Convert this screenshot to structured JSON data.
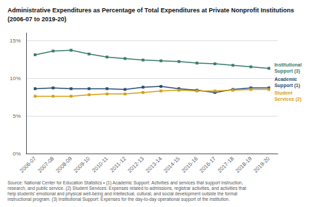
{
  "chart_data": {
    "type": "line",
    "title": "Administrative Expenditures as Percentage of Total Expenditures at Private Nonprofit Institutions",
    "subtitle": "(2006-07 to 2019-20)",
    "categories": [
      "2006-07",
      "2007-08",
      "2008-09",
      "2009-10",
      "2010-11",
      "2011-12",
      "2012-13",
      "2013-14",
      "2014-15",
      "2015-16",
      "2016-17",
      "2017-18",
      "2018-19",
      "2019-20"
    ],
    "series": [
      {
        "name": "Institutional\nSupport (3)",
        "color": "#3a7d6e",
        "values": [
          13.1,
          13.6,
          13.7,
          13.2,
          12.8,
          12.6,
          12.4,
          12.3,
          12.2,
          12.0,
          11.9,
          11.7,
          11.5,
          11.3
        ]
      },
      {
        "name": "Academic\nSupport (1)",
        "color": "#2b4f72",
        "values": [
          8.6,
          8.7,
          8.6,
          8.6,
          8.6,
          8.5,
          8.8,
          8.9,
          8.6,
          8.4,
          8.1,
          8.5,
          8.7,
          8.7
        ]
      },
      {
        "name": "Student\nServices (2)",
        "color": "#d4a017",
        "values": [
          7.6,
          7.6,
          7.6,
          7.8,
          7.9,
          7.9,
          8.1,
          8.3,
          8.4,
          8.3,
          8.3,
          8.4,
          8.5,
          8.5
        ]
      }
    ],
    "ylim": [
      0,
      16
    ],
    "yticks": [
      {
        "value": 0,
        "label": "0%"
      },
      {
        "value": 5,
        "label": "5%"
      },
      {
        "value": 10,
        "label": "10%"
      },
      {
        "value": 15,
        "label": "15%"
      }
    ],
    "grid": true,
    "marker": "square",
    "annotation": "Source: National Center for Education Statistics • (1) Academic Support: Activities and services that support instruction, research, and public service. (2) Student Services: Expenses related to admissions, registrar activities, and activities that help students’ emotional and physical well-being and intellectual, cultural, and social development outside the formal instructional program. (3) Institutional Support: Expenses for the day-to-day operational support of the institution."
  }
}
